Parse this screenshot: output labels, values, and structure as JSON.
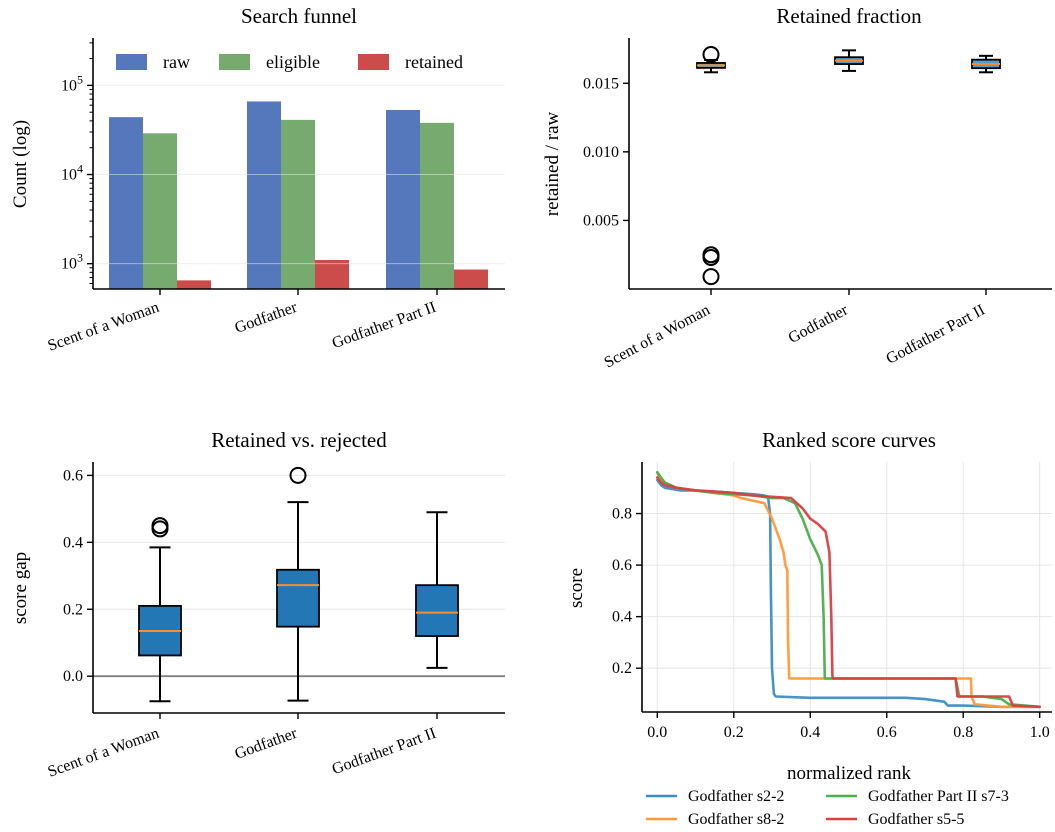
{
  "colors": {
    "raw": "#5577bb",
    "eligible": "#77aa6f",
    "retained": "#cc4c4c",
    "box_fill": "#2277b4",
    "median": "#ff8c2a",
    "grid": "#e6e6e6",
    "zero_line": "#808080",
    "curve_s2_2": "#3b8dc4",
    "curve_s8_2": "#ff9a38",
    "curve_s7_3": "#4cae4c",
    "curve_s5_5": "#d94040"
  },
  "chart_data": [
    {
      "type": "bar",
      "title": "Search funnel",
      "ylabel": "Count (log)",
      "yscale": "log",
      "ylim": [
        520,
        340000
      ],
      "yticks": [
        1000,
        10000,
        100000
      ],
      "ytick_labels": [
        {
          "base": "10",
          "exp": "3"
        },
        {
          "base": "10",
          "exp": "4"
        },
        {
          "base": "10",
          "exp": "5"
        }
      ],
      "categories": [
        "Scent of a Woman",
        "Godfather",
        "Godfather Part II"
      ],
      "series": [
        {
          "name": "raw",
          "color_key": "raw",
          "values": [
            44000,
            66000,
            53000
          ]
        },
        {
          "name": "eligible",
          "color_key": "eligible",
          "values": [
            29000,
            41000,
            38000
          ]
        },
        {
          "name": "retained",
          "color_key": "retained",
          "values": [
            650,
            1100,
            860
          ]
        }
      ],
      "legend": "top",
      "grid": true
    },
    {
      "type": "box",
      "title": "Retained fraction",
      "ylabel": "retained / raw",
      "ylim": [
        0.0,
        0.0183
      ],
      "yticks": [
        0.005,
        0.01,
        0.015
      ],
      "ytick_labels": [
        "0.005",
        "0.010",
        "0.015"
      ],
      "categories": [
        "Scent of a Woman",
        "Godfather",
        "Godfather Part II"
      ],
      "boxes": [
        {
          "whislo": 0.0158,
          "q1": 0.01612,
          "med": 0.0163,
          "q3": 0.01648,
          "whishi": 0.0167,
          "fliers": [
            0.0025,
            0.0023,
            0.0009,
            0.0171
          ]
        },
        {
          "whislo": 0.0159,
          "q1": 0.0164,
          "med": 0.01665,
          "q3": 0.0169,
          "whishi": 0.0174,
          "fliers": []
        },
        {
          "whislo": 0.0158,
          "q1": 0.0161,
          "med": 0.0164,
          "q3": 0.01672,
          "whishi": 0.017,
          "fliers": []
        }
      ],
      "box_fill_key": "box_fill",
      "box_fill_opacity": 0.75,
      "grid": false
    },
    {
      "type": "box",
      "title": "Retained vs. rejected",
      "ylabel": "score gap",
      "ylim": [
        -0.11,
        0.64
      ],
      "yticks": [
        0.0,
        0.2,
        0.4,
        0.6
      ],
      "ytick_labels": [
        "0.0",
        "0.2",
        "0.4",
        "0.6"
      ],
      "hline": 0.0,
      "categories": [
        "Scent of a Woman",
        "Godfather",
        "Godfather Part II"
      ],
      "boxes": [
        {
          "whislo": -0.075,
          "q1": 0.062,
          "med": 0.135,
          "q3": 0.21,
          "whishi": 0.385,
          "fliers": [
            0.44,
            0.45
          ]
        },
        {
          "whislo": -0.073,
          "q1": 0.148,
          "med": 0.272,
          "q3": 0.318,
          "whishi": 0.52,
          "fliers": [
            0.6
          ]
        },
        {
          "whislo": 0.025,
          "q1": 0.12,
          "med": 0.19,
          "q3": 0.272,
          "whishi": 0.49,
          "fliers": []
        }
      ],
      "box_fill_key": "box_fill",
      "box_fill_opacity": 1.0,
      "grid": true
    },
    {
      "type": "line",
      "title": "Ranked score curves",
      "xlabel": "normalized rank",
      "ylabel": "score",
      "xlim": [
        -0.04,
        1.04
      ],
      "ylim": [
        0.03,
        1.0
      ],
      "xticks": [
        0.0,
        0.2,
        0.4,
        0.6,
        0.8,
        1.0
      ],
      "xtick_labels": [
        "0.0",
        "0.2",
        "0.4",
        "0.6",
        "0.8",
        "1.0"
      ],
      "yticks": [
        0.2,
        0.4,
        0.6,
        0.8
      ],
      "ytick_labels": [
        "0.2",
        "0.4",
        "0.6",
        "0.8"
      ],
      "grid": true,
      "legend": "bottom",
      "series": [
        {
          "name": "Godfather s2-2",
          "color_key": "curve_s2_2",
          "x": [
            0.0,
            0.005,
            0.01,
            0.02,
            0.04,
            0.06,
            0.1,
            0.15,
            0.2,
            0.25,
            0.28,
            0.29,
            0.295,
            0.297,
            0.3,
            0.305,
            0.31,
            0.4,
            0.5,
            0.6,
            0.65,
            0.7,
            0.75,
            0.76,
            0.8,
            0.9,
            0.95,
            1.0
          ],
          "y": [
            0.93,
            0.92,
            0.91,
            0.9,
            0.895,
            0.89,
            0.89,
            0.885,
            0.88,
            0.875,
            0.87,
            0.86,
            0.8,
            0.5,
            0.2,
            0.1,
            0.09,
            0.085,
            0.085,
            0.085,
            0.085,
            0.08,
            0.07,
            0.055,
            0.055,
            0.05,
            0.05,
            0.05
          ]
        },
        {
          "name": "Godfather s8-2",
          "color_key": "curve_s8_2",
          "x": [
            0.0,
            0.005,
            0.01,
            0.02,
            0.05,
            0.1,
            0.15,
            0.2,
            0.22,
            0.25,
            0.28,
            0.3,
            0.32,
            0.33,
            0.335,
            0.34,
            0.342,
            0.345,
            0.4,
            0.5,
            0.6,
            0.7,
            0.8,
            0.82,
            0.822,
            0.83,
            0.9,
            1.0
          ],
          "y": [
            0.96,
            0.94,
            0.93,
            0.92,
            0.9,
            0.89,
            0.88,
            0.87,
            0.86,
            0.85,
            0.84,
            0.78,
            0.7,
            0.65,
            0.6,
            0.58,
            0.3,
            0.16,
            0.16,
            0.16,
            0.16,
            0.16,
            0.16,
            0.16,
            0.09,
            0.06,
            0.05,
            0.05
          ]
        },
        {
          "name": "Godfather Part II s7-3",
          "color_key": "curve_s7_3",
          "x": [
            0.0,
            0.005,
            0.01,
            0.02,
            0.05,
            0.1,
            0.15,
            0.2,
            0.25,
            0.3,
            0.33,
            0.36,
            0.38,
            0.4,
            0.42,
            0.43,
            0.435,
            0.438,
            0.44,
            0.5,
            0.6,
            0.7,
            0.78,
            0.79,
            0.8,
            0.85,
            0.9,
            0.92,
            1.0
          ],
          "y": [
            0.96,
            0.95,
            0.94,
            0.92,
            0.9,
            0.89,
            0.88,
            0.875,
            0.87,
            0.86,
            0.86,
            0.84,
            0.78,
            0.7,
            0.64,
            0.6,
            0.4,
            0.16,
            0.16,
            0.16,
            0.16,
            0.16,
            0.16,
            0.09,
            0.09,
            0.09,
            0.08,
            0.06,
            0.05
          ]
        },
        {
          "name": "Godfather s5-5",
          "color_key": "curve_s5_5",
          "x": [
            0.0,
            0.005,
            0.01,
            0.02,
            0.05,
            0.1,
            0.15,
            0.2,
            0.25,
            0.3,
            0.35,
            0.38,
            0.4,
            0.42,
            0.44,
            0.45,
            0.455,
            0.458,
            0.46,
            0.5,
            0.6,
            0.7,
            0.78,
            0.785,
            0.8,
            0.9,
            0.92,
            0.93,
            1.0
          ],
          "y": [
            0.94,
            0.93,
            0.92,
            0.91,
            0.9,
            0.89,
            0.885,
            0.88,
            0.87,
            0.865,
            0.86,
            0.82,
            0.78,
            0.76,
            0.73,
            0.65,
            0.4,
            0.17,
            0.16,
            0.16,
            0.16,
            0.16,
            0.16,
            0.09,
            0.09,
            0.09,
            0.09,
            0.055,
            0.05
          ]
        }
      ]
    }
  ]
}
